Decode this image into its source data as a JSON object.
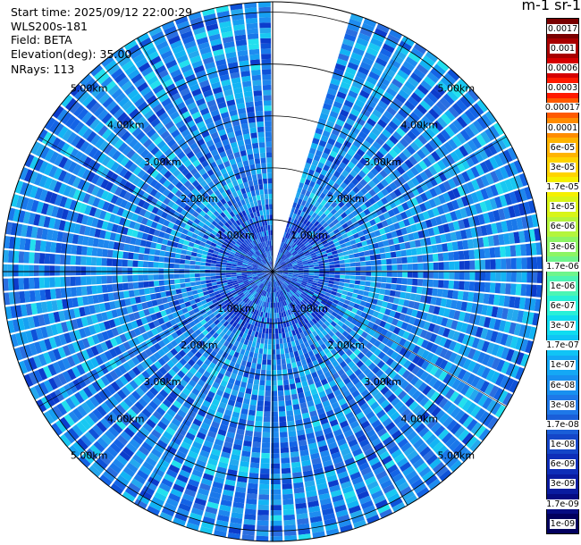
{
  "info": {
    "start_time": "Start time: 2025/09/12 22:00:29",
    "instrument": "WLS200s-181",
    "field": "Field: BETA",
    "elevation": "Elevation(deg): 35.00",
    "nrays": "NRays: 113"
  },
  "colorbar": {
    "unit": "m-1 sr-1",
    "labels": [
      "0.0017",
      "0.001",
      "0.0006",
      "0.0003",
      "0.00017",
      "0.0001",
      "6e-05",
      "3e-05",
      "1.7e-05",
      "1e-05",
      "6e-06",
      "3e-06",
      "1.7e-06",
      "1e-06",
      "6e-07",
      "3e-07",
      "1.7e-07",
      "1e-07",
      "6e-08",
      "3e-08",
      "1.7e-08",
      "1e-08",
      "6e-09",
      "3e-09",
      "1.7e-09",
      "1e-09"
    ],
    "colors": [
      "#7a0000",
      "#a80000",
      "#d60000",
      "#ff1a00",
      "#ff5a00",
      "#ff8c00",
      "#ffb400",
      "#ffd400",
      "#f5f000",
      "#d8f518",
      "#b4f53c",
      "#8cf564",
      "#6ef58c",
      "#4cf5b4",
      "#28f0d8",
      "#10dcf0",
      "#10c4f5",
      "#14a8f5",
      "#1890f0",
      "#1e78e8",
      "#1a5ed8",
      "#1446c8",
      "#0e2eb8",
      "#0a1ca0",
      "#060c82",
      "#02005e"
    ]
  },
  "chart_data": {
    "type": "heatmap",
    "projection": "polar-ppi",
    "rings_km": [
      1,
      2,
      3,
      4,
      5
    ],
    "ring_labels": [
      "1.00km",
      "2.00km",
      "3.00km",
      "4.00km",
      "5.00km"
    ],
    "max_range_km": 5.2,
    "nrays": 113,
    "azimuth_gap_deg": [
      0,
      17
    ],
    "elevation_deg": 35.0,
    "value_range": [
      1e-09,
      0.0017
    ],
    "typical_value": 6e-08,
    "grid": true
  }
}
